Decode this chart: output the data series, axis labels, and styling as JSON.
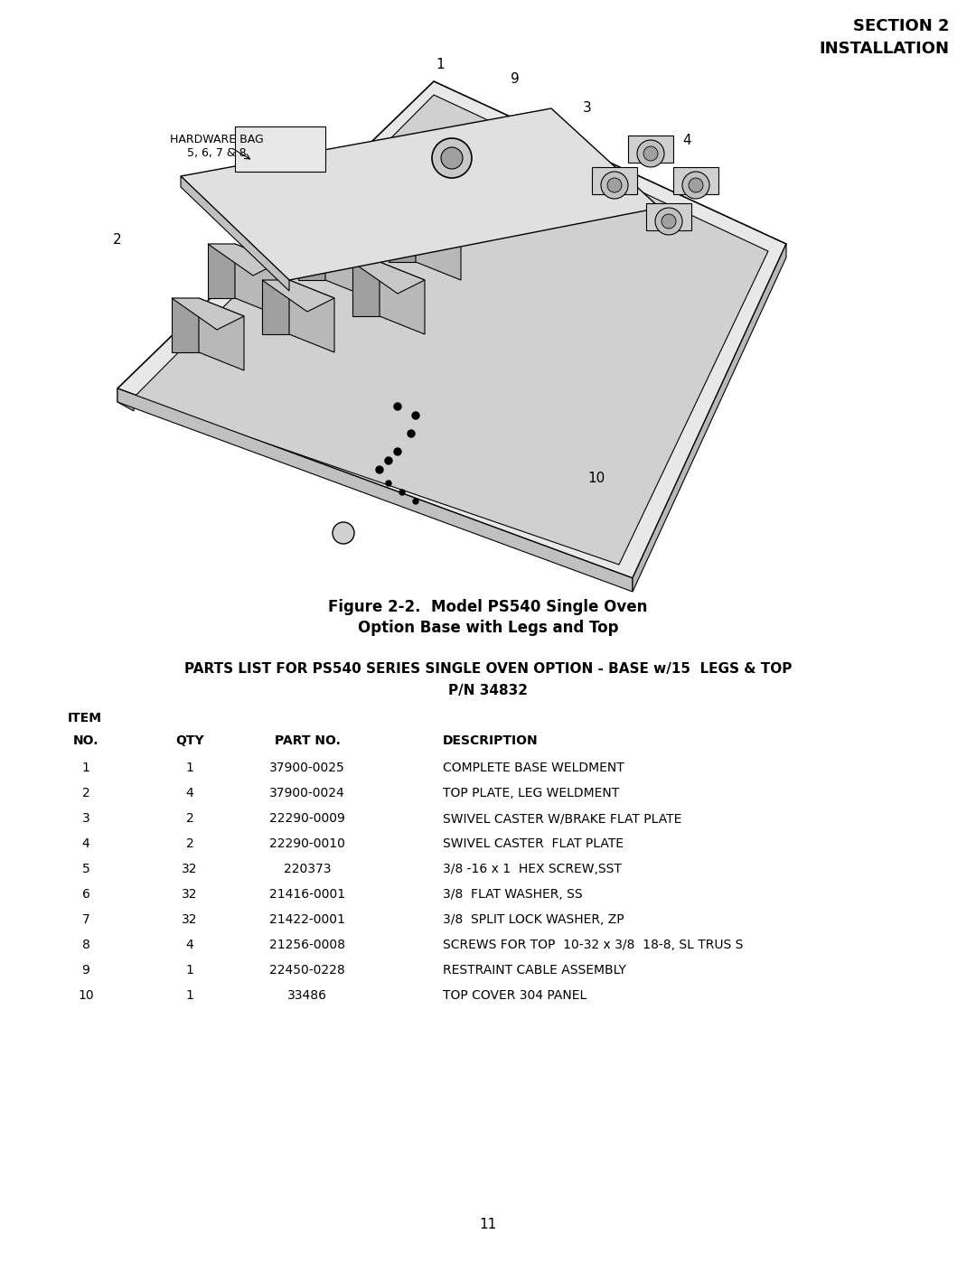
{
  "section_header": "SECTION 2\nINSTALLATION",
  "figure_caption_line1": "Figure 2-2.  Model PS540 Single Oven",
  "figure_caption_line2": "Option Base with Legs and Top",
  "parts_list_title1": "PARTS LIST FOR PS540 SERIES SINGLE OVEN OPTION - BASE w/15  LEGS & TOP",
  "parts_list_title2": "P/N 34832",
  "table_headers": [
    "ITEM\nNO.",
    "QTY",
    "PART NO.",
    "DESCRIPTION"
  ],
  "table_rows": [
    [
      "1",
      "1",
      "37900-0025",
      "COMPLETE BASE WELDMENT"
    ],
    [
      "2",
      "4",
      "37900-0024",
      "TOP PLATE, LEG WELDMENT"
    ],
    [
      "3",
      "2",
      "22290-0009",
      "SWIVEL CASTER W/BRAKE FLAT PLATE"
    ],
    [
      "4",
      "2",
      "22290-0010",
      "SWIVEL CASTER  FLAT PLATE"
    ],
    [
      "5",
      "32",
      "220373",
      "3/8 -16 x 1  HEX SCREW,SST"
    ],
    [
      "6",
      "32",
      "21416-0001",
      "3/8  FLAT WASHER, SS"
    ],
    [
      "7",
      "32",
      "21422-0001",
      "3/8  SPLIT LOCK WASHER, ZP"
    ],
    [
      "8",
      "4",
      "21256-0008",
      "SCREWS FOR TOP  10-32 x 3/8  18-8, SL TRUS S"
    ],
    [
      "9",
      "1",
      "22450-0228",
      "RESTRAINT CABLE ASSEMBLY"
    ],
    [
      "10",
      "1",
      "33486",
      "TOP COVER 304 PANEL"
    ]
  ],
  "page_number": "11",
  "hardware_bag_label": "HARDWARE BAG\n5, 6, 7 & 8",
  "callouts": [
    "1",
    "9",
    "3",
    "4",
    "2",
    "10"
  ],
  "background_color": "#ffffff",
  "text_color": "#000000"
}
